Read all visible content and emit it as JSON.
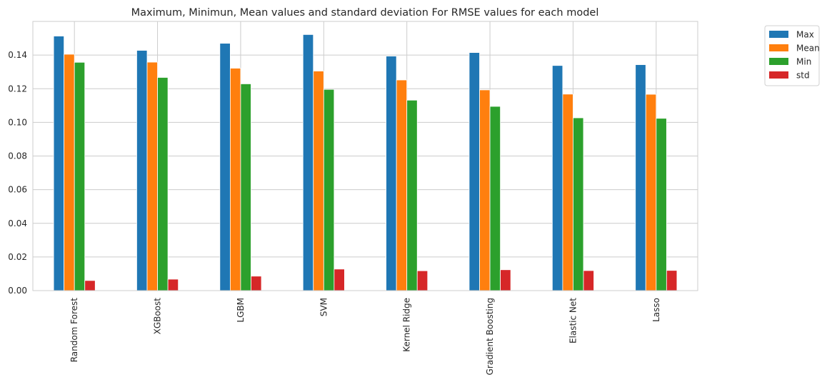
{
  "chart_data": {
    "type": "bar",
    "title": "Maximum, Minimun, Mean values and standard deviation For RMSE values for each model",
    "xlabel": "",
    "ylabel": "",
    "categories": [
      "Random Forest",
      "XGBoost",
      "LGBM",
      "SVM",
      "Kernel Ridge",
      "Gradient Boosting",
      "Elastic Net",
      "Lasso"
    ],
    "series": [
      {
        "name": "Max",
        "color": "#1f77b4",
        "values": [
          0.1513,
          0.1428,
          0.147,
          0.1522,
          0.1394,
          0.1415,
          0.1338,
          0.1343
        ]
      },
      {
        "name": "Mean",
        "color": "#ff7f0e",
        "values": [
          0.1405,
          0.1358,
          0.1322,
          0.1305,
          0.1252,
          0.1193,
          0.1168,
          0.1167
        ]
      },
      {
        "name": "Min",
        "color": "#2ca02c",
        "values": [
          0.1357,
          0.1267,
          0.1229,
          0.1196,
          0.1132,
          0.1095,
          0.1027,
          0.1024
        ]
      },
      {
        "name": "std",
        "color": "#d62728",
        "values": [
          0.006,
          0.0068,
          0.0086,
          0.0128,
          0.0118,
          0.0124,
          0.0119,
          0.012
        ]
      }
    ],
    "yticks": [
      "0.00",
      "0.02",
      "0.04",
      "0.06",
      "0.08",
      "0.10",
      "0.12",
      "0.14"
    ],
    "ylim": [
      0,
      0.16
    ],
    "grid": true,
    "legend_position": "outside-top-right",
    "grid_color": "#cccccc",
    "axes_edge_color": "#cccccc"
  }
}
